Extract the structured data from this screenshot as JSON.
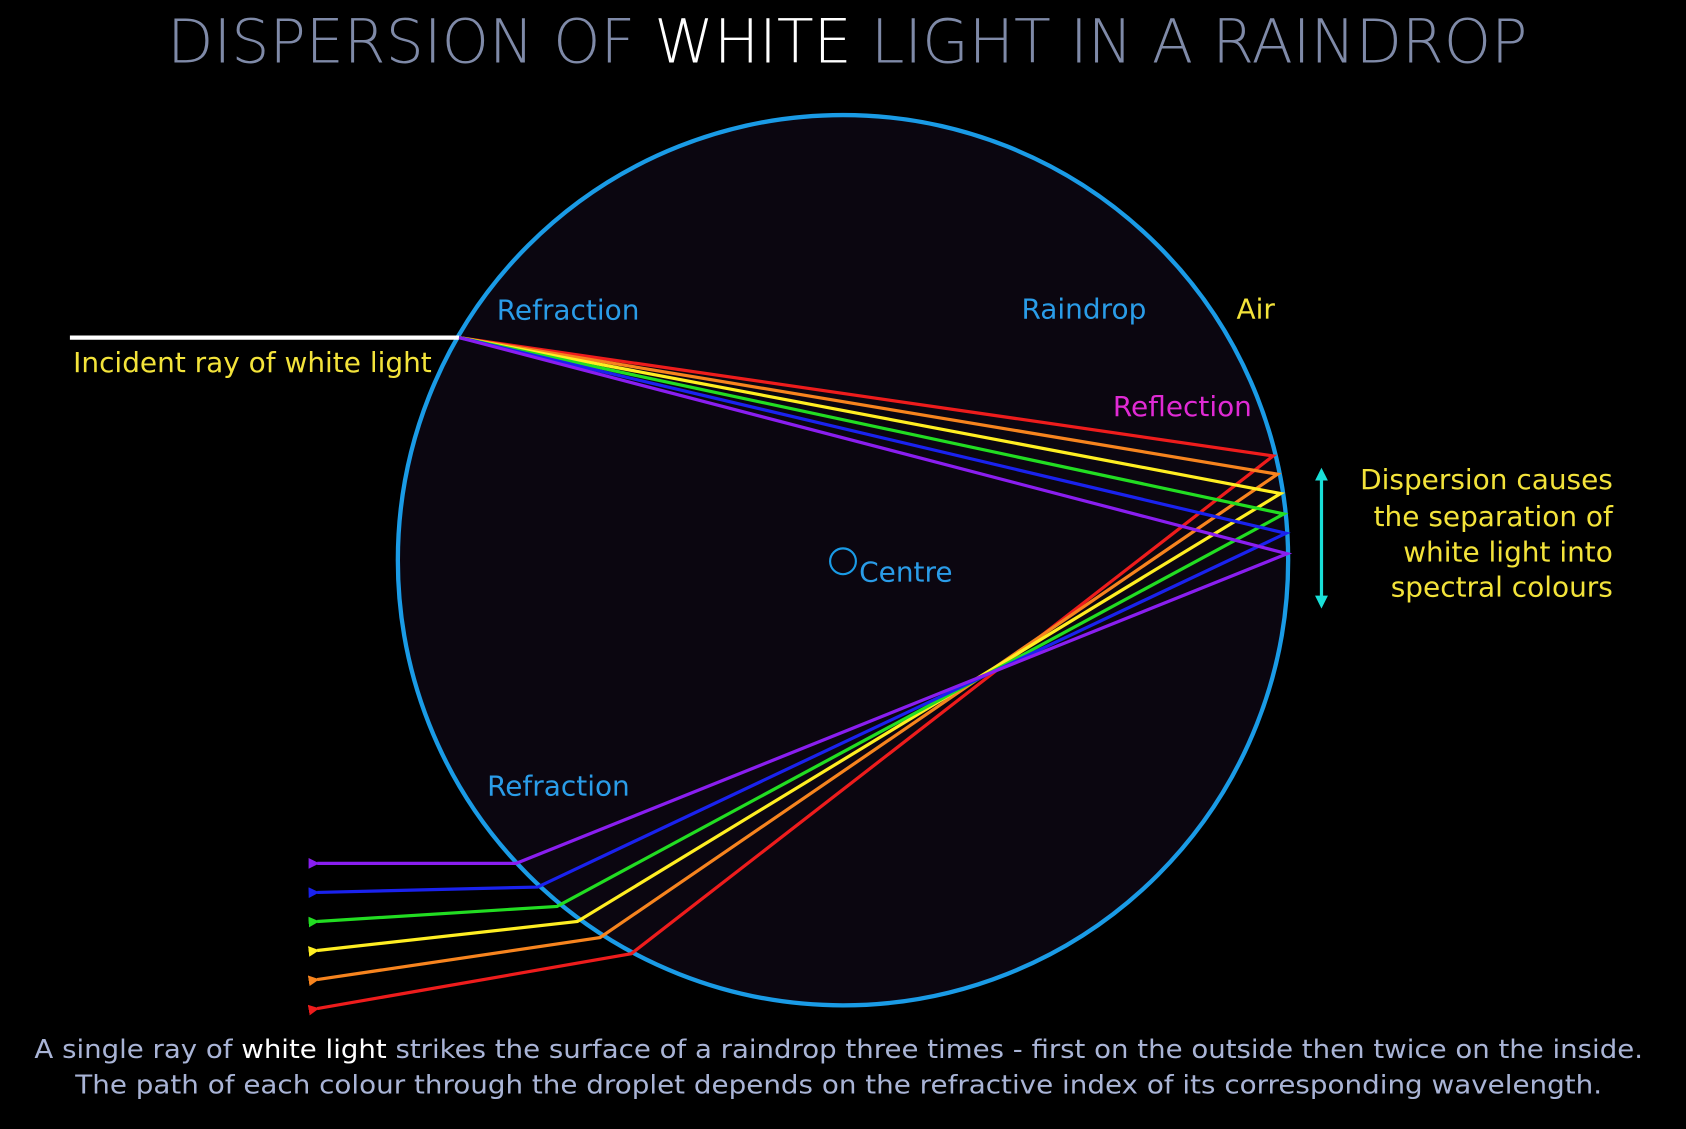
{
  "title": {
    "before": "DISPERSION OF ",
    "highlight": "WHITE",
    "after": " LIGHT IN A RAINDROP"
  },
  "labels": {
    "refraction_in": "Refraction",
    "raindrop": "Raindrop",
    "air": "Air",
    "reflection": "Reflection",
    "incident": "Incident ray of white light",
    "centre": "Centre",
    "refraction_out": "Refraction",
    "dispersion": [
      "Dispersion causes",
      "the separation of",
      "white light into",
      "spectral colours"
    ]
  },
  "caption": {
    "line1": {
      "before": "A single ray of ",
      "highlight": "white light",
      "after": " strikes the surface of a raindrop three times - first on the outside then twice on the inside."
    },
    "line2": "The path of each colour through the droplet depends on the refractive index of its corresponding wavelength."
  }
}
